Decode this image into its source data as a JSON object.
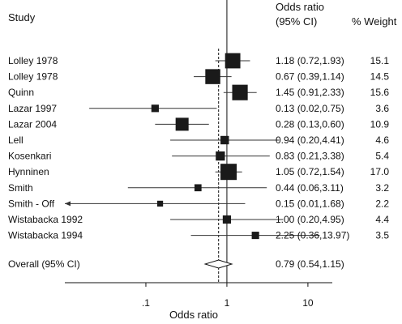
{
  "chart_data": {
    "type": "forest",
    "headers": {
      "study": "Study",
      "odds_ratio_line1": "Odds ratio",
      "odds_ratio_line2": "(95% CI)",
      "weight": "% Weight"
    },
    "xlabel": "Odds ratio",
    "x_scale": "log",
    "xlim": [
      0.01,
      20
    ],
    "x_ticks": [
      {
        "value": 0.1,
        "label": ".1"
      },
      {
        "value": 1,
        "label": "1"
      },
      {
        "value": 10,
        "label": "10"
      }
    ],
    "null_line": 1,
    "pooled_line": 0.79,
    "studies": [
      {
        "name": "Lolley 1978",
        "or": 1.18,
        "lo": 0.72,
        "hi": 1.93,
        "text": "1.18 (0.72,1.93)",
        "weight": 15.1,
        "weight_text": "15.1"
      },
      {
        "name": "Lolley 1978",
        "or": 0.67,
        "lo": 0.39,
        "hi": 1.14,
        "text": "0.67 (0.39,1.14)",
        "weight": 14.5,
        "weight_text": "14.5"
      },
      {
        "name": "Quinn",
        "or": 1.45,
        "lo": 0.91,
        "hi": 2.33,
        "text": "1.45 (0.91,2.33)",
        "weight": 15.6,
        "weight_text": "15.6"
      },
      {
        "name": "Lazar 1997",
        "or": 0.13,
        "lo": 0.02,
        "hi": 0.75,
        "text": "0.13 (0.02,0.75)",
        "weight": 3.6,
        "weight_text": "3.6"
      },
      {
        "name": "Lazar 2004",
        "or": 0.28,
        "lo": 0.13,
        "hi": 0.6,
        "text": "0.28 (0.13,0.60)",
        "weight": 10.9,
        "weight_text": "10.9"
      },
      {
        "name": "Lell",
        "or": 0.94,
        "lo": 0.2,
        "hi": 4.41,
        "text": "0.94 (0.20,4.41)",
        "weight": 4.6,
        "weight_text": "4.6"
      },
      {
        "name": "Kosenkari",
        "or": 0.83,
        "lo": 0.21,
        "hi": 3.38,
        "text": "0.83 (0.21,3.38)",
        "weight": 5.4,
        "weight_text": "5.4"
      },
      {
        "name": "Hynninen",
        "or": 1.05,
        "lo": 0.72,
        "hi": 1.54,
        "text": "1.05 (0.72,1.54)",
        "weight": 17.0,
        "weight_text": "17.0"
      },
      {
        "name": "Smith",
        "or": 0.44,
        "lo": 0.06,
        "hi": 3.11,
        "text": "0.44 (0.06,3.11)",
        "weight": 3.2,
        "weight_text": "3.2"
      },
      {
        "name": "Smith - Off",
        "or": 0.15,
        "lo": 0.01,
        "hi": 1.68,
        "text": "0.15 (0.01,1.68)",
        "weight": 2.2,
        "weight_text": "2.2"
      },
      {
        "name": "Wistabacka 1992",
        "or": 1.0,
        "lo": 0.2,
        "hi": 4.95,
        "text": "1.00 (0.20,4.95)",
        "weight": 4.4,
        "weight_text": "4.4"
      },
      {
        "name": "Wistabacka 1994",
        "or": 2.25,
        "lo": 0.36,
        "hi": 13.97,
        "text": "2.25 (0.36,13.97)",
        "weight": 3.5,
        "weight_text": "3.5"
      }
    ],
    "overall": {
      "name": "Overall (95% CI)",
      "or": 0.79,
      "lo": 0.54,
      "hi": 1.15,
      "text": "0.79 (0.54,1.15)"
    }
  }
}
